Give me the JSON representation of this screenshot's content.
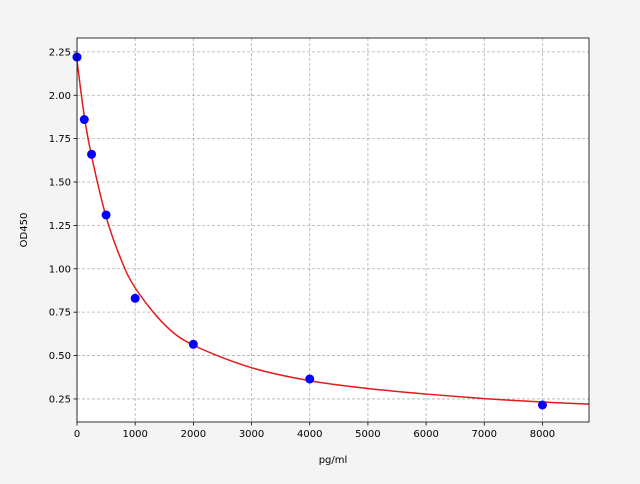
{
  "chart_data": {
    "type": "scatter",
    "title": "",
    "xlabel": "pg/ml",
    "ylabel": "OD450",
    "xlim": [
      0,
      8800
    ],
    "ylim": [
      0.117,
      2.33
    ],
    "grid": true,
    "x_ticks": [
      "0",
      "1000",
      "2000",
      "3000",
      "4000",
      "5000",
      "6000",
      "7000",
      "8000"
    ],
    "y_ticks": [
      "0.25",
      "0.50",
      "0.75",
      "1.00",
      "1.25",
      "1.50",
      "1.75",
      "2.00",
      "2.25"
    ],
    "points": {
      "color": "#0000ff",
      "x": [
        0,
        125,
        250,
        500,
        1000,
        2000,
        4000,
        8000
      ],
      "y": [
        2.22,
        1.86,
        1.66,
        1.31,
        0.83,
        0.565,
        0.365,
        0.215
      ]
    },
    "fit_curve": {
      "color": "#e31a1c",
      "x": [
        0,
        125,
        250,
        500,
        750,
        1000,
        1500,
        2000,
        3000,
        4000,
        5000,
        6000,
        7000,
        8000,
        8800
      ],
      "y": [
        2.2,
        1.88,
        1.65,
        1.3,
        1.06,
        0.89,
        0.68,
        0.56,
        0.43,
        0.355,
        0.31,
        0.278,
        0.252,
        0.232,
        0.22
      ]
    }
  }
}
